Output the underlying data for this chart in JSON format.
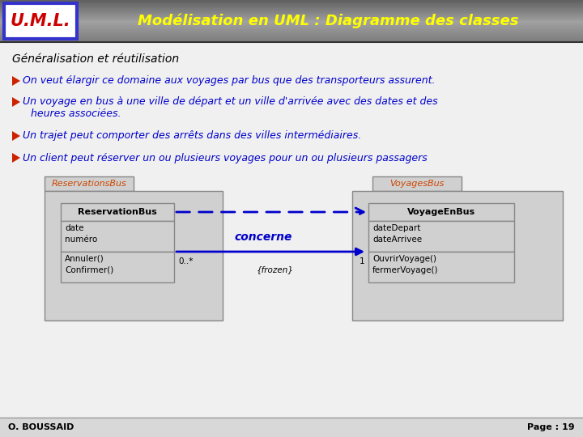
{
  "bg_color": "#f0f0f0",
  "uml_box_border": "#3333cc",
  "uml_text_color": "#cc0000",
  "header_text_color": "#ffff00",
  "title_text": "Modélisation en UML : Diagramme des classes",
  "subtitle_text": "Généralisation et réutilisation",
  "subtitle_color": "#000000",
  "bullet_color": "#cc2200",
  "bullet_text_color": "#0000cc",
  "bullet1": "On veut élargir ce domaine aux voyages par bus que des transporteurs assurent.",
  "bullet2a": "Un voyage en bus à une ville de départ et un ville d'arrivée avec des dates et des",
  "bullet2b": "heures associées.",
  "bullet3": "Un trajet peut comporter des arrêts dans des villes intermédiaires.",
  "bullet4": "Un client peut réserver un ou plusieurs voyages pour un ou plusieurs passagers",
  "footer_left": "O. BOUSSAID",
  "footer_right": "Page : 19",
  "footer_color": "#000000",
  "footer_bg": "#d8d8d8",
  "class_bg": "#d0d0d0",
  "class_border": "#888888",
  "class_name_color": "#cc4400",
  "class_text_color": "#000000",
  "arrow_color": "#0000cc",
  "assoc_label": "concerne",
  "assoc_label_color": "#0000cc",
  "mult_left": "0..*",
  "mult_right": "1",
  "frozen_label": "{frozen}",
  "package_reservations": "ReservationsBus",
  "package_voyages": "VoyagesBus",
  "class1_name": "ReservationBus",
  "class1_attrs": [
    "date",
    "numéro"
  ],
  "class1_methods": [
    "Annuler()",
    "Confirmer()"
  ],
  "class2_name": "VoyageEnBus",
  "class2_attrs": [
    "dateDepart",
    "dateArrivee"
  ],
  "class2_methods": [
    "OuvrirVoyage()",
    "fermerVoyage()"
  ]
}
